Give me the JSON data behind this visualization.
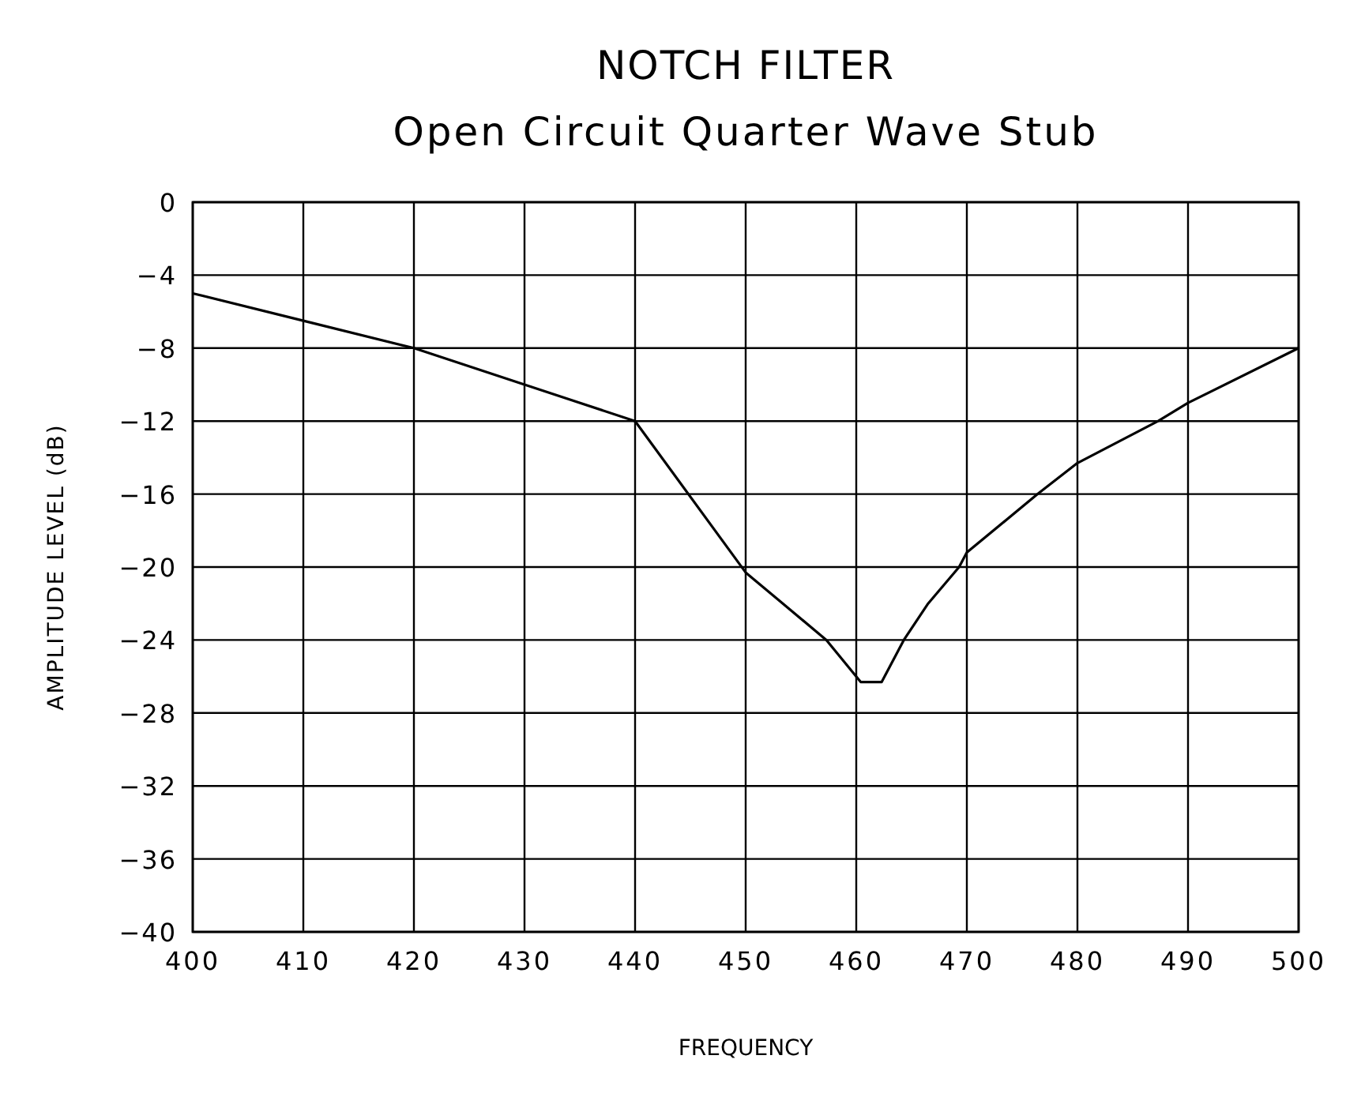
{
  "chart_data": {
    "type": "line",
    "title": "NOTCH FILTER",
    "subtitle": "Open Circuit Quarter Wave Stub",
    "xlabel": "FREQUENCY",
    "ylabel": "AMPLITUDE LEVEL (dB)",
    "series": [
      {
        "color": "#000000",
        "x": [
          400,
          410,
          420,
          430,
          440,
          450,
          457.3,
          460.4,
          462.3,
          464.3,
          466.5,
          469.3,
          470,
          476.4,
          480,
          487.3,
          490,
          500
        ],
        "values": [
          -5,
          -6.5,
          -8,
          -10,
          -12,
          -20.3,
          -24,
          -26.3,
          -26.3,
          -24,
          -22,
          -20,
          -19.2,
          -16,
          -14.3,
          -12,
          -11,
          -8
        ]
      }
    ],
    "xlim": [
      400,
      500
    ],
    "xticks": [
      400,
      410,
      420,
      430,
      440,
      450,
      460,
      470,
      480,
      490,
      500
    ],
    "ylim": [
      -40,
      0
    ],
    "yticks": [
      {
        "value": -40,
        "label": "−40"
      },
      {
        "value": -36,
        "label": "−36"
      },
      {
        "value": -32,
        "label": "−32"
      },
      {
        "value": -28,
        "label": "−28"
      },
      {
        "value": -24,
        "label": "−24"
      },
      {
        "value": -20,
        "label": "−20"
      },
      {
        "value": -16,
        "label": "−16"
      },
      {
        "value": -12,
        "label": "−12"
      },
      {
        "value": -8,
        "label": "−8"
      },
      {
        "value": -4,
        "label": "−4"
      },
      0
    ],
    "grid": true,
    "marker": "none",
    "line_style": "solid"
  }
}
